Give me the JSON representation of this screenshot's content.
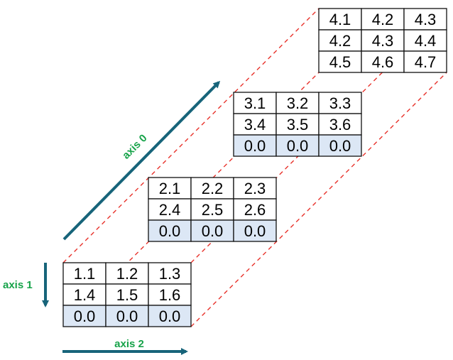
{
  "colors": {
    "grid_line": "#111111",
    "cell_fill": "#ffffff",
    "highlight_fill": "#dce7f5",
    "guide_dash": "#e8322b",
    "axis_arrow": "#17647a",
    "axis_label": "#17a34a"
  },
  "slices": [
    {
      "name": "slice-1",
      "rows": [
        [
          "1.1",
          "1.2",
          "1.3"
        ],
        [
          "1.4",
          "1.5",
          "1.6"
        ],
        [
          "0.0",
          "0.0",
          "0.0"
        ]
      ],
      "highlight_rows": [
        2
      ]
    },
    {
      "name": "slice-2",
      "rows": [
        [
          "2.1",
          "2.2",
          "2.3"
        ],
        [
          "2.4",
          "2.5",
          "2.6"
        ],
        [
          "0.0",
          "0.0",
          "0.0"
        ]
      ],
      "highlight_rows": [
        2
      ]
    },
    {
      "name": "slice-3",
      "rows": [
        [
          "3.1",
          "3.2",
          "3.3"
        ],
        [
          "3.4",
          "3.5",
          "3.6"
        ],
        [
          "0.0",
          "0.0",
          "0.0"
        ]
      ],
      "highlight_rows": [
        2
      ]
    },
    {
      "name": "slice-4",
      "rows": [
        [
          "4.1",
          "4.2",
          "4.3"
        ],
        [
          "4.2",
          "4.3",
          "4.4"
        ],
        [
          "4.5",
          "4.6",
          "4.7"
        ]
      ],
      "highlight_rows": []
    }
  ],
  "axes": {
    "axis0": {
      "label": "axis 0"
    },
    "axis1": {
      "label": "axis 1"
    },
    "axis2": {
      "label": "axis 2"
    }
  }
}
